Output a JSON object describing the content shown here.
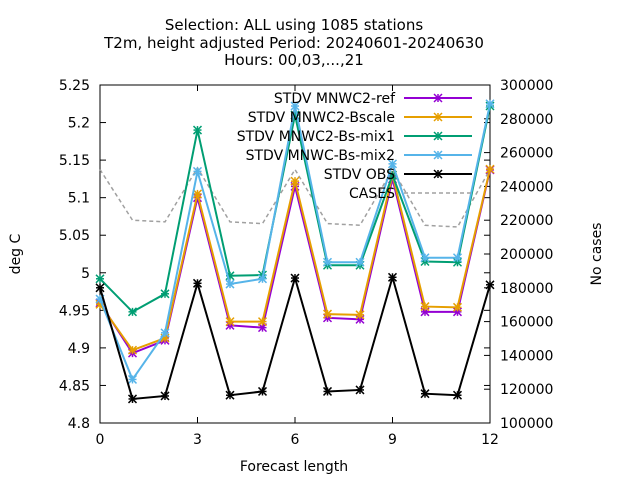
{
  "chart_data": {
    "type": "line",
    "title_lines": [
      "Selection: ALL using  1085 stations",
      "T2m, height adjusted   Period: 20240601-20240630",
      "Hours: 00,03,...,21"
    ],
    "xlabel": "Forecast length",
    "ylabel": "deg C",
    "y2label": "No cases",
    "x": [
      0,
      1,
      2,
      3,
      4,
      5,
      6,
      7,
      8,
      9,
      10,
      11,
      12
    ],
    "xlim": [
      0,
      12
    ],
    "ylim": [
      4.8,
      5.25
    ],
    "y2lim": [
      100000,
      300000
    ],
    "xticks": [
      "0",
      "3",
      "6",
      "9",
      "12"
    ],
    "yticks": [
      "4.8",
      "4.85",
      "4.9",
      "4.95",
      "5",
      "5.05",
      "5.1",
      "5.15",
      "5.2",
      "5.25"
    ],
    "y2ticks": [
      "100000",
      "120000",
      "140000",
      "160000",
      "180000",
      "200000",
      "220000",
      "240000",
      "260000",
      "280000",
      "300000"
    ],
    "grid": false,
    "legend_position": "top-right",
    "series": [
      {
        "name": "STDV MNWC2-ref",
        "color": "#9400d3",
        "axis": "y",
        "values": [
          4.96,
          4.893,
          4.91,
          5.1,
          4.93,
          4.927,
          5.115,
          4.94,
          4.938,
          5.125,
          4.948,
          4.948,
          5.137
        ]
      },
      {
        "name": "STDV MNWC2-Bscale",
        "color": "#e69f00",
        "axis": "y",
        "values": [
          4.958,
          4.897,
          4.913,
          5.105,
          4.935,
          4.935,
          5.122,
          4.945,
          4.944,
          5.13,
          4.955,
          4.954,
          5.138
        ]
      },
      {
        "name": "STDV MNWC2-Bs-mix1",
        "color": "#009e73",
        "axis": "y",
        "values": [
          4.992,
          4.948,
          4.972,
          5.19,
          4.996,
          4.997,
          5.21,
          5.01,
          5.01,
          5.13,
          5.015,
          5.014,
          5.222
        ]
      },
      {
        "name": "STDV MNWC-Bs-mix2",
        "color": "#56b4e9",
        "axis": "y",
        "values": [
          4.965,
          4.858,
          4.92,
          5.135,
          4.985,
          4.992,
          5.222,
          5.014,
          5.014,
          5.145,
          5.02,
          5.02,
          5.225
        ]
      },
      {
        "name": "STDV OBS",
        "color": "#000000",
        "axis": "y",
        "values": [
          4.98,
          4.832,
          4.836,
          4.986,
          4.837,
          4.842,
          4.993,
          4.842,
          4.844,
          4.994,
          4.839,
          4.837,
          4.984
        ]
      },
      {
        "name": "CASES",
        "color": "#a0a0a0",
        "axis": "y2",
        "dashed": true,
        "values": [
          250000,
          220000,
          219000,
          251000,
          219000,
          218000,
          250000,
          218000,
          217000,
          250000,
          217000,
          216000,
          250000
        ]
      }
    ]
  }
}
